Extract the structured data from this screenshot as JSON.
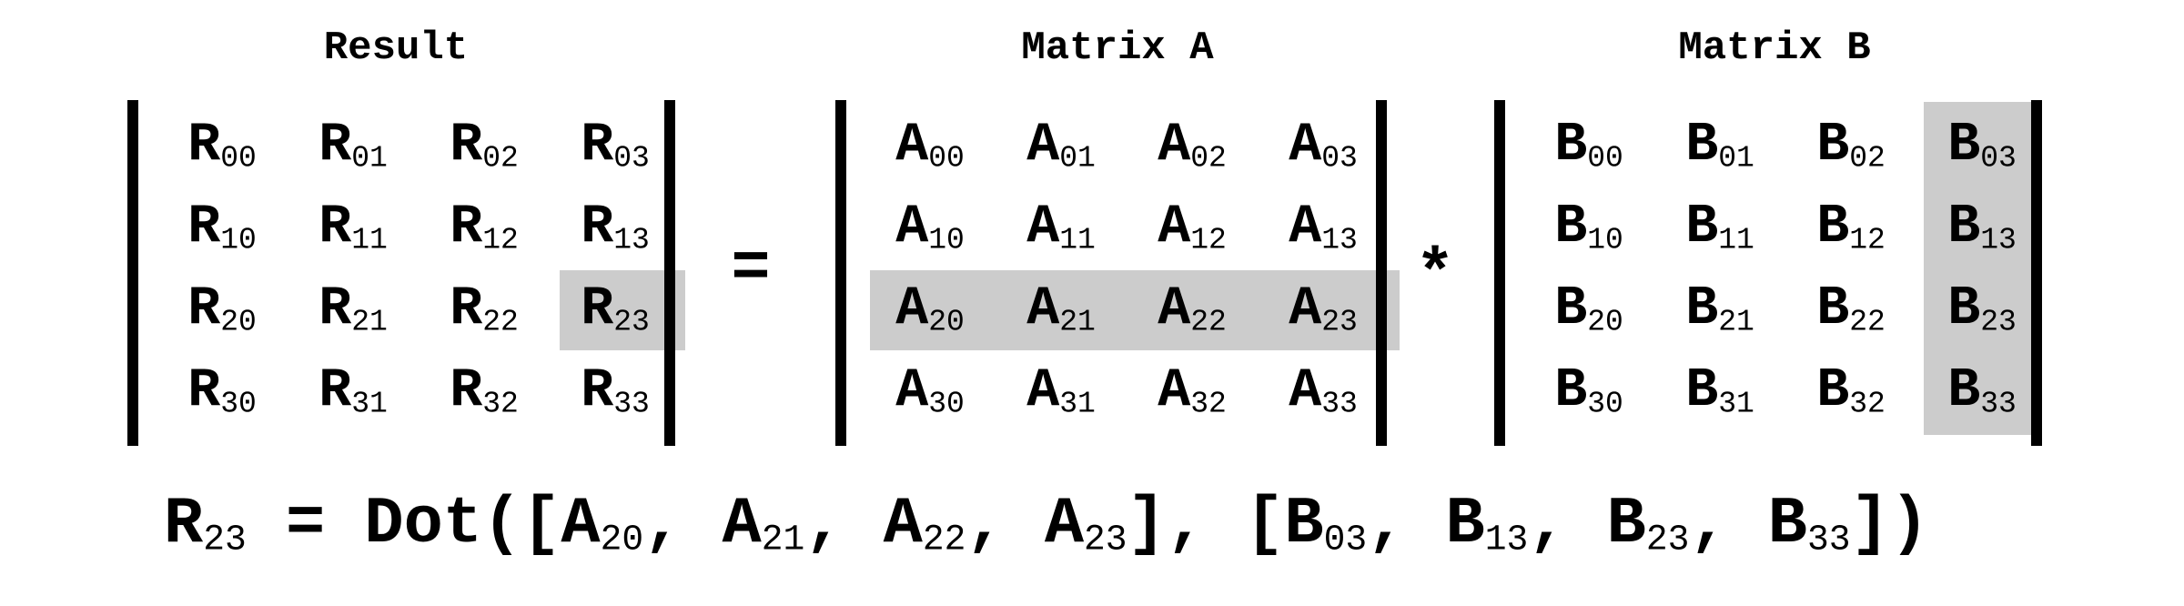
{
  "titles": {
    "result": "Result",
    "a": "Matrix A",
    "b": "Matrix B"
  },
  "operators": {
    "equals": "=",
    "multiply": "*"
  },
  "matrices": [
    {
      "key": "R",
      "letter": "R"
    },
    {
      "key": "A",
      "letter": "A"
    },
    {
      "key": "B",
      "letter": "B"
    }
  ],
  "highlight": {
    "R": {
      "kind": "cell",
      "row": 2,
      "col": 3
    },
    "A": {
      "kind": "row",
      "row": 2
    },
    "B": {
      "kind": "col",
      "col": 3
    }
  },
  "formula": {
    "text": "R_23 = Dot([A_20, A_21, A_22, A_23], [B_03, B_13, B_23, B_33])"
  },
  "colors": {
    "highlight": "#cccccc",
    "ink": "#000000"
  }
}
